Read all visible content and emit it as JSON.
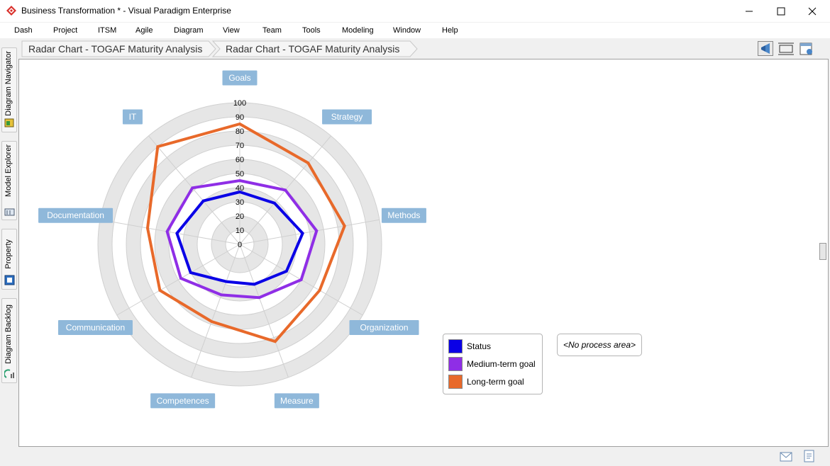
{
  "window": {
    "title": "Business Transformation * - Visual Paradigm Enterprise"
  },
  "menu": [
    "Dash",
    "Project",
    "ITSM",
    "Agile",
    "Diagram",
    "View",
    "Team",
    "Tools",
    "Modeling",
    "Window",
    "Help"
  ],
  "side_tabs": [
    "Diagram Navigator",
    "Model Explorer",
    "Property",
    "Diagram Backlog"
  ],
  "breadcrumbs": [
    "Radar Chart - TOGAF Maturity Analysis",
    "Radar Chart - TOGAF Maturity Analysis"
  ],
  "colors": {
    "status": "#0a00e6",
    "medium": "#8f2ee6",
    "long": "#e8692a",
    "axis_label_bg": "#8fb8da"
  },
  "chart_data": {
    "type": "radar",
    "axes": [
      "Goals",
      "Strategy",
      "Methods",
      "Organization",
      "Measure",
      "Competences",
      "Communication",
      "Documentation",
      "IT"
    ],
    "rlim": [
      0,
      100
    ],
    "ticks": [
      "0",
      "10",
      "20",
      "30",
      "40",
      "50",
      "60",
      "70",
      "80",
      "90",
      "100"
    ],
    "series": [
      {
        "name": "Status",
        "values": [
          37,
          38,
          45,
          38,
          30,
          28,
          40,
          45,
          40
        ]
      },
      {
        "name": "Medium-term goal",
        "values": [
          45,
          50,
          55,
          50,
          40,
          38,
          48,
          52,
          52
        ]
      },
      {
        "name": "Long-term goal",
        "values": [
          85,
          75,
          75,
          65,
          73,
          58,
          65,
          66,
          90
        ]
      }
    ],
    "legend_position": "bottom-right"
  },
  "process_area": "<No process area>",
  "icons": [
    "app-diamond-icon",
    "minimize-icon",
    "maximize-icon",
    "close-icon",
    "megaphone-icon",
    "fit-icon",
    "layout-icon",
    "mail-icon",
    "note-icon"
  ]
}
